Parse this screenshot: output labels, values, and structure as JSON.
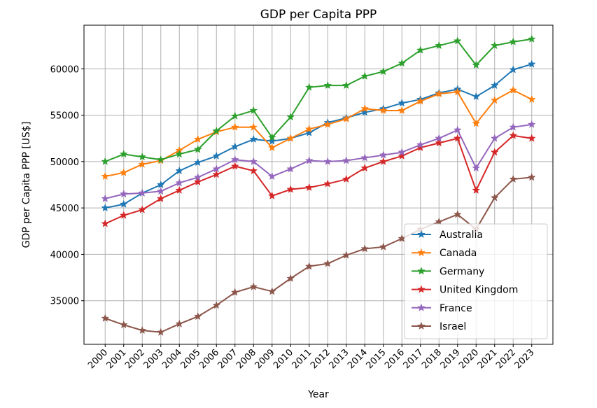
{
  "chart_data": {
    "type": "line",
    "title": "GDP per Capita PPP",
    "xlabel": "Year",
    "ylabel": "GDP per Capita PPP [US$]",
    "categories": [
      "2000",
      "2001",
      "2002",
      "2003",
      "2004",
      "2005",
      "2006",
      "2007",
      "2008",
      "2009",
      "2010",
      "2011",
      "2012",
      "2013",
      "2014",
      "2015",
      "2016",
      "2017",
      "2018",
      "2019",
      "2020",
      "2021",
      "2022",
      "2023"
    ],
    "ylim": [
      30300,
      64700
    ],
    "yticks": [
      35000,
      40000,
      45000,
      50000,
      55000,
      60000
    ],
    "grid": true,
    "marker": "star",
    "legend_position": "lower-right",
    "series": [
      {
        "name": "Australia",
        "color": "#1f77b4",
        "values": [
          45000,
          45400,
          46600,
          47500,
          49000,
          49900,
          50600,
          51600,
          52400,
          52200,
          52500,
          53100,
          54200,
          54700,
          55300,
          55700,
          56300,
          56700,
          57400,
          57800,
          57000,
          58200,
          59900,
          60500
        ]
      },
      {
        "name": "Canada",
        "color": "#ff7f0e",
        "values": [
          48400,
          48800,
          49700,
          50100,
          51200,
          52400,
          53200,
          53700,
          53700,
          51500,
          52500,
          53500,
          54000,
          54600,
          55700,
          55500,
          55500,
          56500,
          57300,
          57500,
          54100,
          56600,
          57700,
          56700
        ]
      },
      {
        "name": "Germany",
        "color": "#2ca02c",
        "values": [
          50000,
          50800,
          50500,
          50200,
          50800,
          51300,
          53300,
          54900,
          55500,
          52600,
          54800,
          58000,
          58200,
          58200,
          59200,
          59700,
          60600,
          62000,
          62500,
          63000,
          60400,
          62500,
          62900,
          63200
        ]
      },
      {
        "name": "United Kingdom",
        "color": "#d62728",
        "values": [
          43300,
          44200,
          44800,
          46000,
          46900,
          47800,
          48600,
          49500,
          49000,
          46300,
          47000,
          47200,
          47600,
          48100,
          49300,
          50000,
          50600,
          51500,
          52000,
          52500,
          46900,
          51000,
          52800,
          52500
        ]
      },
      {
        "name": "France",
        "color": "#9467bd",
        "values": [
          46000,
          46500,
          46600,
          46800,
          47700,
          48300,
          49200,
          50200,
          50000,
          48400,
          49200,
          50100,
          50000,
          50100,
          50400,
          50700,
          51000,
          51800,
          52500,
          53400,
          49300,
          52500,
          53700,
          54000
        ]
      },
      {
        "name": "Israel",
        "color": "#8c564b",
        "values": [
          33100,
          32400,
          31800,
          31600,
          32500,
          33300,
          34500,
          35900,
          36500,
          36000,
          37400,
          38700,
          39000,
          39900,
          40600,
          40800,
          41700,
          42700,
          43500,
          44300,
          42700,
          46100,
          48100,
          48300
        ]
      }
    ]
  }
}
